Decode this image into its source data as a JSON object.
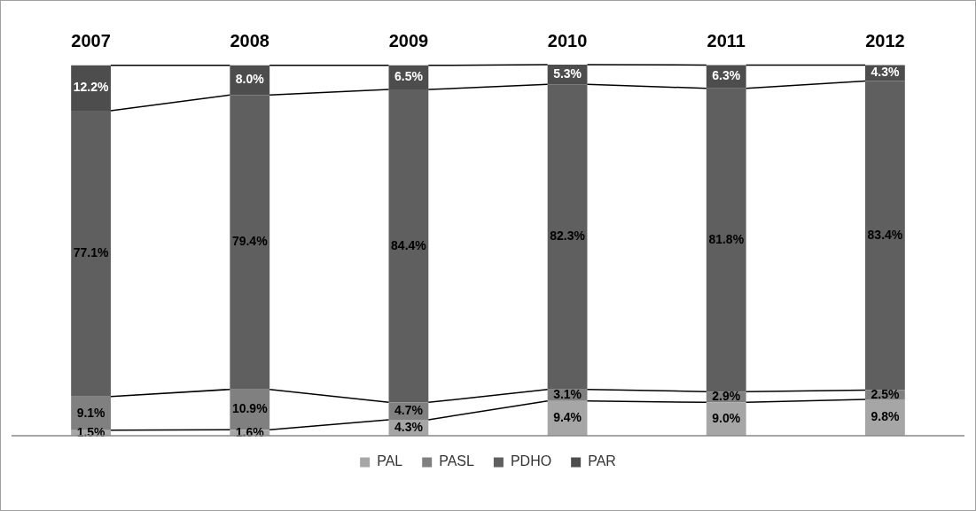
{
  "chart_data": {
    "type": "bar",
    "stacked": true,
    "legend": "bottom",
    "grid": false,
    "categories": [
      "2007",
      "2008",
      "2009",
      "2010",
      "2011",
      "2012"
    ],
    "series": [
      {
        "name": "PAL",
        "color": "#a6a6a6",
        "values": [
          1.5,
          1.6,
          4.3,
          9.4,
          9.0,
          9.8
        ],
        "value_labels": [
          "1.5%",
          "1.6%",
          "4.3%",
          "9.4%",
          "9.0%",
          "9.8%"
        ]
      },
      {
        "name": "PASL",
        "color": "#808080",
        "values": [
          9.1,
          10.9,
          4.7,
          3.1,
          2.9,
          2.5
        ],
        "value_labels": [
          "9.1%",
          "10.9%",
          "4.7%",
          "3.1%",
          "2.9%",
          "2.5%"
        ]
      },
      {
        "name": "PDHO",
        "color": "#5f5f5f",
        "values": [
          77.1,
          79.4,
          84.4,
          82.3,
          81.8,
          83.4
        ],
        "value_labels": [
          "77.1%",
          "79.4%",
          "84.4%",
          "82.3%",
          "81.8%",
          "83.4%"
        ]
      },
      {
        "name": "PAR",
        "color": "#4d4d4d",
        "values": [
          12.2,
          8.0,
          6.5,
          5.3,
          6.3,
          4.3
        ],
        "value_labels": [
          "12.2%",
          "8.0%",
          "6.5%",
          "5.3%",
          "6.3%",
          "4.3%"
        ]
      }
    ]
  }
}
